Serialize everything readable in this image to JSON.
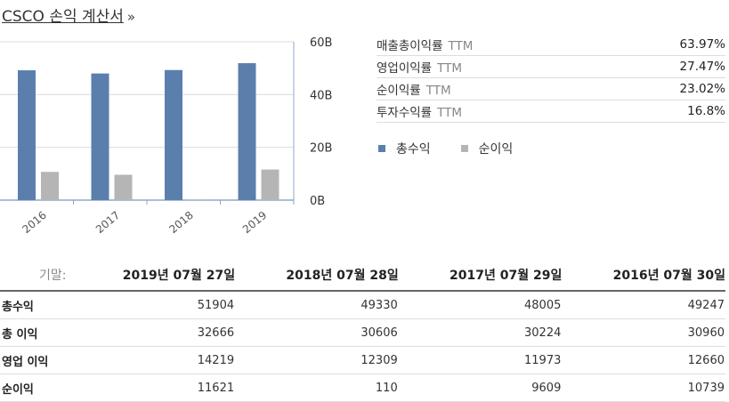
{
  "header": {
    "title": "CSCO 손익 계산서",
    "more": "»"
  },
  "chart_data": {
    "type": "bar",
    "categories": [
      "2016",
      "2017",
      "2018",
      "2019"
    ],
    "series": [
      {
        "name": "총수익",
        "values": [
          49.2,
          48.0,
          49.3,
          51.9
        ],
        "color": "#5b7fad"
      },
      {
        "name": "순이익",
        "values": [
          10.7,
          9.6,
          0.1,
          11.6
        ],
        "color": "#b5b5b5"
      }
    ],
    "y_ticks": [
      "0B",
      "20B",
      "40B",
      "60B"
    ],
    "ylim": [
      0,
      60
    ],
    "grid": true,
    "legend_position": "right"
  },
  "metrics": [
    {
      "label": "매출총이익률",
      "ttm": "TTM",
      "value": "63.97%"
    },
    {
      "label": "영업이익률",
      "ttm": "TTM",
      "value": "27.47%"
    },
    {
      "label": "순이익률",
      "ttm": "TTM",
      "value": "23.02%"
    },
    {
      "label": "투자수익률",
      "ttm": "TTM",
      "value": "16.8%"
    }
  ],
  "legend": [
    {
      "label": "총수익",
      "color": "#5b7fad"
    },
    {
      "label": "순이익",
      "color": "#b5b5b5"
    }
  ],
  "table": {
    "period_label": "기말:",
    "columns": [
      "2019년 07월 27일",
      "2018년 07월 28일",
      "2017년 07월 29일",
      "2016년 07월 30일"
    ],
    "rows": [
      {
        "label": "총수익",
        "values": [
          "51904",
          "49330",
          "48005",
          "49247"
        ]
      },
      {
        "label": "총 이익",
        "values": [
          "32666",
          "30606",
          "30224",
          "30960"
        ]
      },
      {
        "label": "영업 이익",
        "values": [
          "14219",
          "12309",
          "11973",
          "12660"
        ]
      },
      {
        "label": "순이익",
        "values": [
          "11621",
          "110",
          "9609",
          "10739"
        ]
      }
    ]
  }
}
